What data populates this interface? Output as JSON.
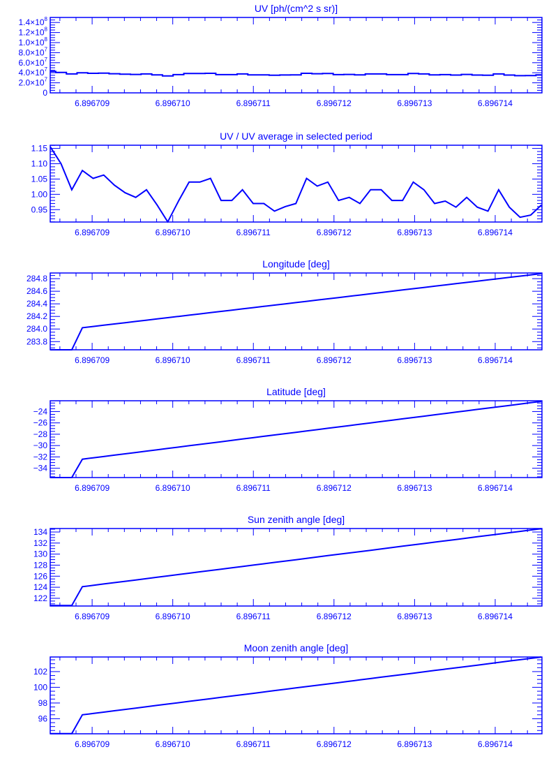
{
  "colors": {
    "line": "#0000ff",
    "background": "#ffffff"
  },
  "shared_x": [
    6.896708482,
    6.896708614,
    6.896708747,
    6.896708879,
    6.896709012,
    6.896709144,
    6.896709276,
    6.896709409,
    6.896709541,
    6.896709674,
    6.896709806,
    6.896709938,
    6.896710071,
    6.896710203,
    6.896710336,
    6.896710468,
    6.8967106,
    6.896710733,
    6.896710865,
    6.896710998,
    6.89671113,
    6.896711262,
    6.896711395,
    6.896711527,
    6.89671166,
    6.896711792,
    6.896711924,
    6.896712057,
    6.896712189,
    6.896712322,
    6.896712454,
    6.896712586,
    6.896712719,
    6.896712851,
    6.896712984,
    6.896713116,
    6.896713248,
    6.896713381,
    6.896713513,
    6.896713646,
    6.896713778,
    6.89671391,
    6.896714043,
    6.896714175,
    6.896714308,
    6.89671444,
    6.896714572
  ],
  "x_axis": {
    "xlim": [
      6.89670848,
      6.89671458
    ],
    "ticks": [
      6.896709,
      6.89671,
      6.896711,
      6.896712,
      6.896713,
      6.896714
    ],
    "tick_labels": [
      "6.896709",
      "6.896710",
      "6.896711",
      "6.896712",
      "6.896713",
      "6.896714"
    ],
    "minor_subdivisions": 5
  },
  "chart_data": [
    {
      "type": "line",
      "style": "step",
      "title": "UV [ph/(cm^2 s sr)]",
      "ylim": [
        0,
        150000000.0
      ],
      "yticks": [
        0,
        20000000.0,
        40000000.0,
        60000000.0,
        80000000.0,
        100000000.0,
        120000000.0,
        140000000.0
      ],
      "ytick_labels": [
        {
          "m": "0",
          "e": ""
        },
        {
          "m": "2.0×10",
          "e": "7"
        },
        {
          "m": "4.0×10",
          "e": "7"
        },
        {
          "m": "6.0×10",
          "e": "7"
        },
        {
          "m": "8.0×10",
          "e": "7"
        },
        {
          "m": "1.0×10",
          "e": "8"
        },
        {
          "m": "1.2×10",
          "e": "8"
        },
        {
          "m": "1.4×10",
          "e": "8"
        }
      ],
      "minor_subdivisions": 4,
      "y": [
        42700000.0,
        40700000.0,
        37600000.0,
        39900000.0,
        38900000.0,
        39300000.0,
        38100000.0,
        37200000.0,
        36600000.0,
        37600000.0,
        35700000.0,
        33700000.0,
        36200000.0,
        38500000.0,
        38500000.0,
        38900000.0,
        36300000.0,
        36300000.0,
        37600000.0,
        35900000.0,
        35900000.0,
        35000000.0,
        35500000.0,
        35900000.0,
        38900000.0,
        38000000.0,
        38500000.0,
        36300000.0,
        36600000.0,
        35900000.0,
        37600000.0,
        37600000.0,
        36300000.0,
        36300000.0,
        38500000.0,
        37600000.0,
        35900000.0,
        36200000.0,
        35400000.0,
        36600000.0,
        35400000.0,
        35000000.0,
        37600000.0,
        35400000.0,
        34200000.0,
        34500000.0,
        35700000.0
      ]
    },
    {
      "type": "line",
      "title": "UV / UV average in selected period",
      "ylim": [
        0.9095,
        1.1605
      ],
      "yticks": [
        0.95,
        1.0,
        1.05,
        1.1,
        1.15
      ],
      "ytick_labels": [
        {
          "m": "0.95",
          "e": ""
        },
        {
          "m": "1.00",
          "e": ""
        },
        {
          "m": "1.05",
          "e": ""
        },
        {
          "m": "1.10",
          "e": ""
        },
        {
          "m": "1.15",
          "e": ""
        }
      ],
      "minor_subdivisions": 5,
      "y": [
        1.155,
        1.1,
        1.015,
        1.078,
        1.052,
        1.063,
        1.03,
        1.005,
        0.99,
        1.015,
        0.965,
        0.91,
        0.978,
        1.04,
        1.04,
        1.052,
        0.98,
        0.98,
        1.015,
        0.97,
        0.97,
        0.945,
        0.96,
        0.97,
        1.052,
        1.027,
        1.04,
        0.98,
        0.99,
        0.97,
        1.015,
        1.015,
        0.98,
        0.98,
        1.04,
        1.015,
        0.97,
        0.978,
        0.958,
        0.99,
        0.958,
        0.945,
        1.015,
        0.958,
        0.925,
        0.932,
        0.965
      ]
    },
    {
      "type": "line",
      "title": "Longitude [deg]",
      "ylim": [
        283.67,
        284.89
      ],
      "yticks": [
        283.8,
        284.0,
        284.2,
        284.4,
        284.6,
        284.8
      ],
      "ytick_labels": [
        {
          "m": "283.8",
          "e": ""
        },
        {
          "m": "284.0",
          "e": ""
        },
        {
          "m": "284.2",
          "e": ""
        },
        {
          "m": "284.4",
          "e": ""
        },
        {
          "m": "284.6",
          "e": ""
        },
        {
          "m": "284.8",
          "e": ""
        }
      ],
      "minor_subdivisions": 4,
      "y": [
        283.67,
        283.67,
        283.67,
        284.02,
        284.04,
        284.06,
        284.08,
        284.1,
        284.12,
        284.14,
        284.16,
        284.18,
        284.2,
        284.22,
        284.24,
        284.26,
        284.28,
        284.3,
        284.32,
        284.34,
        284.36,
        284.38,
        284.4,
        284.42,
        284.44,
        284.46,
        284.48,
        284.5,
        284.52,
        284.54,
        284.56,
        284.58,
        284.6,
        284.62,
        284.64,
        284.66,
        284.68,
        284.7,
        284.72,
        284.74,
        284.76,
        284.78,
        284.8,
        284.82,
        284.84,
        284.86,
        284.88
      ]
    },
    {
      "type": "line",
      "title": "Latitude [deg]",
      "ylim": [
        -35.64,
        -22.1
      ],
      "yticks": [
        -34,
        -32,
        -30,
        -28,
        -26,
        -24
      ],
      "ytick_labels": [
        {
          "m": "−34",
          "e": ""
        },
        {
          "m": "−32",
          "e": ""
        },
        {
          "m": "−30",
          "e": ""
        },
        {
          "m": "−28",
          "e": ""
        },
        {
          "m": "−26",
          "e": ""
        },
        {
          "m": "−24",
          "e": ""
        }
      ],
      "minor_subdivisions": 4,
      "y": [
        -35.64,
        -35.64,
        -35.64,
        -32.4,
        -32.16,
        -31.93,
        -31.69,
        -31.45,
        -31.22,
        -30.98,
        -30.74,
        -30.5,
        -30.27,
        -30.03,
        -29.79,
        -29.56,
        -29.32,
        -29.08,
        -28.85,
        -28.61,
        -28.37,
        -28.13,
        -27.9,
        -27.66,
        -27.42,
        -27.19,
        -26.95,
        -26.71,
        -26.48,
        -26.24,
        -26.0,
        -25.76,
        -25.53,
        -25.29,
        -25.05,
        -24.82,
        -24.58,
        -24.34,
        -24.11,
        -23.87,
        -23.63,
        -23.39,
        -23.16,
        -22.92,
        -22.68,
        -22.45,
        -22.21
      ]
    },
    {
      "type": "line",
      "title": "Sun zenith angle [deg]",
      "ylim": [
        120.6,
        134.63
      ],
      "yticks": [
        122,
        124,
        126,
        128,
        130,
        132,
        134
      ],
      "ytick_labels": [
        {
          "m": "122",
          "e": ""
        },
        {
          "m": "124",
          "e": ""
        },
        {
          "m": "126",
          "e": ""
        },
        {
          "m": "128",
          "e": ""
        },
        {
          "m": "130",
          "e": ""
        },
        {
          "m": "132",
          "e": ""
        },
        {
          "m": "134",
          "e": ""
        }
      ],
      "minor_subdivisions": 4,
      "y": [
        120.7,
        120.7,
        120.7,
        124.1,
        124.34,
        124.59,
        124.83,
        125.08,
        125.32,
        125.57,
        125.81,
        126.05,
        126.3,
        126.54,
        126.79,
        127.03,
        127.27,
        127.52,
        127.76,
        128.01,
        128.25,
        128.5,
        128.74,
        128.98,
        129.23,
        129.47,
        129.72,
        129.96,
        130.21,
        130.45,
        130.69,
        130.94,
        131.18,
        131.43,
        131.67,
        131.91,
        132.16,
        132.4,
        132.65,
        132.89,
        133.14,
        133.38,
        133.62,
        133.87,
        134.11,
        134.36,
        134.6
      ]
    },
    {
      "type": "line",
      "title": "Moon zenith angle [deg]",
      "ylim": [
        94.08,
        103.86
      ],
      "yticks": [
        96,
        98,
        100,
        102
      ],
      "ytick_labels": [
        {
          "m": "96",
          "e": ""
        },
        {
          "m": "98",
          "e": ""
        },
        {
          "m": "100",
          "e": ""
        },
        {
          "m": "102",
          "e": ""
        }
      ],
      "minor_subdivisions": 4,
      "y": [
        94.1,
        94.1,
        94.1,
        96.5,
        96.67,
        96.84,
        97.01,
        97.18,
        97.35,
        97.53,
        97.7,
        97.87,
        98.04,
        98.21,
        98.38,
        98.55,
        98.72,
        98.89,
        99.06,
        99.23,
        99.41,
        99.58,
        99.75,
        99.92,
        100.09,
        100.26,
        100.43,
        100.6,
        100.77,
        100.94,
        101.11,
        101.29,
        101.46,
        101.63,
        101.8,
        101.97,
        102.14,
        102.31,
        102.48,
        102.65,
        102.82,
        102.99,
        103.17,
        103.34,
        103.51,
        103.68,
        103.85
      ]
    }
  ]
}
